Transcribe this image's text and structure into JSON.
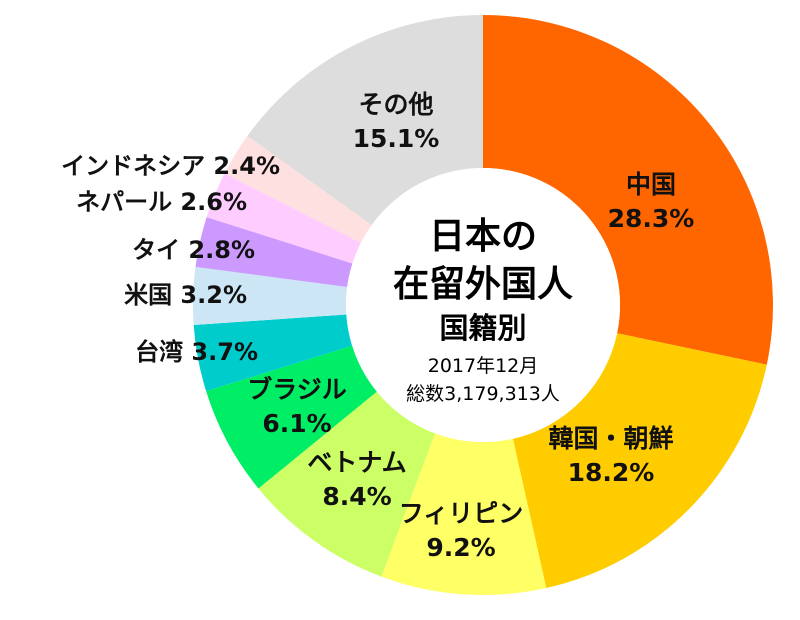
{
  "chart_data": {
    "type": "pie",
    "donut": true,
    "title_lines": [
      "日本の",
      "在留外国人",
      "国籍別"
    ],
    "subtitle": "2017年12月",
    "total_label": "総数3,179,313人",
    "unit": "%",
    "slices": [
      {
        "name": "中国",
        "value": 28.3,
        "color": "#ff6600"
      },
      {
        "name": "韓国・朝鮮",
        "value": 18.2,
        "color": "#ffcc00"
      },
      {
        "name": "フィリピン",
        "value": 9.2,
        "color": "#ffff66"
      },
      {
        "name": "ベトナム",
        "value": 8.4,
        "color": "#ccff66"
      },
      {
        "name": "ブラジル",
        "value": 6.1,
        "color": "#00ee66"
      },
      {
        "name": "台湾",
        "value": 3.7,
        "color": "#00cccc"
      },
      {
        "name": "米国",
        "value": 3.2,
        "color": "#cce6f5"
      },
      {
        "name": "タイ",
        "value": 2.8,
        "color": "#cc99ff"
      },
      {
        "name": "ネパール",
        "value": 2.6,
        "color": "#ffccff"
      },
      {
        "name": "インドネシア",
        "value": 2.4,
        "color": "#ffe0e0"
      },
      {
        "name": "その他",
        "value": 15.1,
        "color": "#dddddd"
      }
    ]
  }
}
